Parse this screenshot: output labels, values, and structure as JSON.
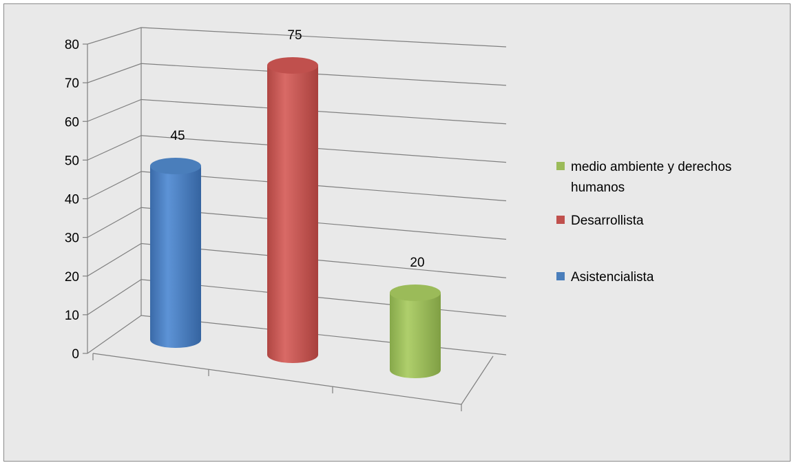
{
  "chart_data": {
    "type": "bar",
    "style": "3d-cylinder",
    "categories": [
      "Asistencialista",
      "Desarrollista",
      "medio ambiente y derechos humanos"
    ],
    "values": [
      45,
      75,
      20
    ],
    "colors": [
      "#4a7ebb",
      "#c0504d",
      "#9bbb59"
    ],
    "ylim": [
      0,
      80
    ],
    "yticks": [
      0,
      10,
      20,
      30,
      40,
      50,
      60,
      70,
      80
    ],
    "grid": true,
    "legend_position": "right",
    "legend": [
      {
        "label_lines": [
          "medio ambiente y derechos",
          "humanos"
        ],
        "color": "#9bbb59"
      },
      {
        "label_lines": [
          "Desarrollista"
        ],
        "color": "#c0504d"
      },
      {
        "label_lines": [
          "Asistencialista"
        ],
        "color": "#4a7ebb"
      }
    ]
  }
}
